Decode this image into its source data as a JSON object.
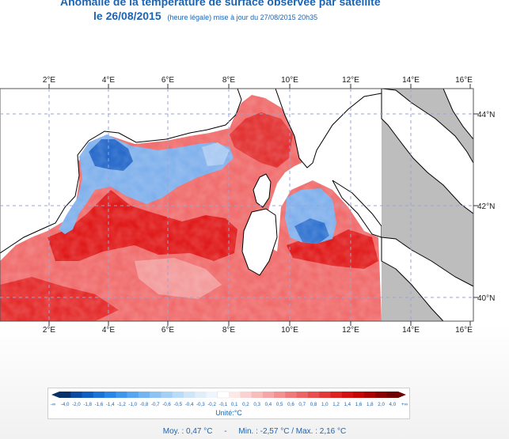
{
  "title": {
    "line1": "Anomalie de la température de surface observée par satellite",
    "date": "le 26/08/2015",
    "update": "(heure légale) mise à jour du 27/08/2015 20h35"
  },
  "map": {
    "top_lon_labels": [
      "2°E",
      "4°E",
      "6°E",
      "8°E",
      "10°E",
      "12°E",
      "14°E",
      "16°E"
    ],
    "bottom_lon_labels": [
      "2°E",
      "4°E",
      "6°E",
      "8°E",
      "10°E",
      "12°E",
      "14°E",
      "16°E"
    ],
    "lat_labels": [
      "44°N",
      "42°N",
      "40°N"
    ],
    "colors": {
      "land": "#bdbdbd",
      "sea_warm": "#f06b6b",
      "sea_hot": "#e01818",
      "sea_cool": "#7fb0ec",
      "sea_cold": "#2166c8",
      "grid": "#9aa4d6"
    }
  },
  "legend": {
    "ticks": [
      "-∞",
      "-4,0",
      "-2,0",
      "-1,8",
      "-1,6",
      "-1,4",
      "-1,2",
      "-1,0",
      "-0,8",
      "-0,7",
      "-0,6",
      "-0,5",
      "-0,4",
      "-0,3",
      "-0,2",
      "-0,1",
      "0,1",
      "0,2",
      "0,3",
      "0,4",
      "0,5",
      "0,6",
      "0,7",
      "0,8",
      "1,0",
      "1,2",
      "1,4",
      "1,6",
      "1,8",
      "2,0",
      "4,0",
      "+∞"
    ],
    "colors": [
      "#08306b",
      "#0b4aa0",
      "#0f5fc2",
      "#1a74d8",
      "#2a86e6",
      "#3f96ec",
      "#58a6ef",
      "#72b5f1",
      "#8cc3f3",
      "#a4d0f5",
      "#bbdcf7",
      "#cfe6f9",
      "#e1eefa",
      "#eef5fc",
      "#ffffff",
      "#fde8e8",
      "#fbd2d2",
      "#f8bcbc",
      "#f6a6a6",
      "#f39090",
      "#f07a7a",
      "#ec6464",
      "#e84e4e",
      "#e33838",
      "#de2222",
      "#d40f0f",
      "#c40606",
      "#aa0303",
      "#8b0000",
      "#6e0000"
    ],
    "unit": "Unité:°C"
  },
  "stats": {
    "moy": "Moy. : 0,47 °C",
    "sep": "-",
    "minmax": "Min. : -2,57 °C / Max. : 2,16 °C"
  }
}
